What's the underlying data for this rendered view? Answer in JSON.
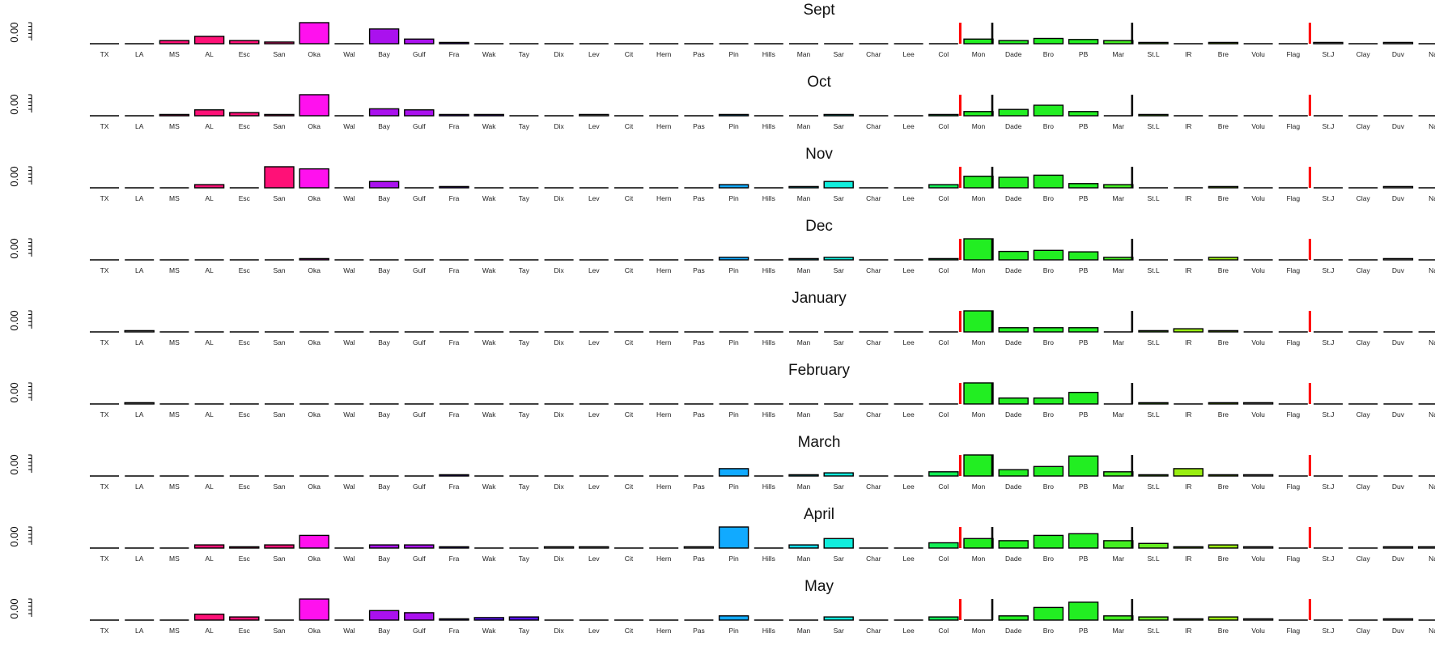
{
  "chart_data": {
    "type": "bar",
    "categories": [
      "TX",
      "LA",
      "MS",
      "AL",
      "Esc",
      "San",
      "Oka",
      "Wal",
      "Bay",
      "Gulf",
      "Fra",
      "Wak",
      "Tay",
      "Dix",
      "Lev",
      "Cit",
      "Hern",
      "Pas",
      "Pin",
      "Hills",
      "Man",
      "Sar",
      "Char",
      "Lee",
      "Col",
      "Mon",
      "Dade",
      "Bro",
      "PB",
      "Mar",
      "St.L",
      "IR",
      "Bre",
      "Volu",
      "Flag",
      "St.J",
      "Clay",
      "Duv",
      "Na"
    ],
    "colors": [
      "#ffffff",
      "#ffffff",
      "#ff1177",
      "#ff1177",
      "#ff1177",
      "#ff1177",
      "#ff11ee",
      "#ffffff",
      "#aa11ee",
      "#aa11ee",
      "#5511ee",
      "#5511ee",
      "#5511ee",
      "#ffffff",
      "#ffffff",
      "#ffffff",
      "#ffffff",
      "#ffffff",
      "#11aaff",
      "#11ccee",
      "#11ddee",
      "#11eedd",
      "#11eebb",
      "#11ee99",
      "#11ee55",
      "#22ee22",
      "#22ee22",
      "#22ee22",
      "#22ee22",
      "#44ee22",
      "#66ee22",
      "#99ee11",
      "#99ee11",
      "#ffffff",
      "#ffffff",
      "#ffffff",
      "#ffffff",
      "#ffffff",
      "#ffffff"
    ],
    "y_tick_label": "0.00",
    "reference_lines": {
      "red": [
        "Col",
        "Flag"
      ],
      "black": [
        "Mon",
        "Mar"
      ]
    },
    "panels": [
      {
        "title": "Sept",
        "values": [
          0,
          0,
          0.15,
          0.35,
          0.15,
          0.08,
          1.0,
          0,
          0.7,
          0.22,
          0.06,
          0,
          0,
          0,
          0,
          0,
          0,
          0,
          0,
          0,
          0,
          0,
          0,
          0,
          0,
          0.22,
          0.15,
          0.25,
          0.2,
          0.15,
          0.06,
          0,
          0.06,
          0,
          0,
          0.06,
          0,
          0.06,
          0
        ]
      },
      {
        "title": "Oct",
        "values": [
          0,
          0,
          0.06,
          0.28,
          0.15,
          0.06,
          1.0,
          0,
          0.33,
          0.28,
          0.06,
          0.06,
          0,
          0,
          0.06,
          0,
          0,
          0,
          0.06,
          0,
          0,
          0.06,
          0,
          0,
          0.06,
          0.2,
          0.3,
          0.5,
          0.2,
          0,
          0.06,
          0,
          0,
          0,
          0,
          0,
          0,
          0,
          0
        ]
      },
      {
        "title": "Nov",
        "values": [
          0,
          0,
          0,
          0.15,
          0,
          1.0,
          0.9,
          0,
          0.3,
          0,
          0.06,
          0,
          0,
          0,
          0,
          0,
          0,
          0,
          0.15,
          0,
          0.06,
          0.3,
          0,
          0,
          0.15,
          0.55,
          0.5,
          0.6,
          0.2,
          0.15,
          0,
          0,
          0.06,
          0,
          0,
          0,
          0,
          0.06,
          0
        ]
      },
      {
        "title": "Dec",
        "values": [
          0,
          0,
          0,
          0,
          0,
          0,
          0.06,
          0,
          0,
          0,
          0,
          0,
          0,
          0,
          0,
          0,
          0,
          0,
          0.12,
          0,
          0.06,
          0.12,
          0,
          0,
          0.06,
          1.0,
          0.4,
          0.45,
          0.38,
          0.12,
          0,
          0,
          0.12,
          0,
          0,
          0,
          0,
          0.06,
          0
        ]
      },
      {
        "title": "January",
        "values": [
          0,
          0.06,
          0,
          0,
          0,
          0,
          0,
          0,
          0,
          0,
          0,
          0,
          0,
          0,
          0,
          0,
          0,
          0,
          0,
          0,
          0,
          0,
          0,
          0,
          0,
          1.0,
          0.2,
          0.2,
          0.2,
          0,
          0.06,
          0.15,
          0.06,
          0,
          0,
          0,
          0,
          0,
          0
        ]
      },
      {
        "title": "February",
        "values": [
          0,
          0.06,
          0,
          0,
          0,
          0,
          0,
          0,
          0,
          0,
          0,
          0,
          0,
          0,
          0,
          0,
          0,
          0,
          0,
          0,
          0,
          0,
          0,
          0,
          0,
          1.0,
          0.28,
          0.28,
          0.55,
          0,
          0.06,
          0,
          0.06,
          0.06,
          0,
          0,
          0,
          0,
          0
        ]
      },
      {
        "title": "March",
        "values": [
          0,
          0,
          0,
          0,
          0,
          0,
          0,
          0,
          0,
          0,
          0.06,
          0,
          0,
          0,
          0,
          0,
          0,
          0,
          0.35,
          0,
          0.06,
          0.15,
          0,
          0,
          0.2,
          1.0,
          0.3,
          0.45,
          0.95,
          0.2,
          0.06,
          0.35,
          0.06,
          0.06,
          0,
          0,
          0,
          0,
          0
        ]
      },
      {
        "title": "April",
        "values": [
          0,
          0,
          0,
          0.15,
          0.06,
          0.15,
          0.6,
          0,
          0.15,
          0.15,
          0.06,
          0,
          0,
          0.06,
          0.06,
          0,
          0,
          0.06,
          1.0,
          0,
          0.15,
          0.45,
          0,
          0,
          0.25,
          0.45,
          0.35,
          0.6,
          0.68,
          0.35,
          0.22,
          0.06,
          0.15,
          0.06,
          0,
          0,
          0,
          0.06,
          0.06
        ]
      },
      {
        "title": "May",
        "values": [
          0,
          0,
          0,
          0.28,
          0.15,
          0,
          1.0,
          0,
          0.45,
          0.35,
          0.06,
          0.12,
          0.15,
          0,
          0,
          0,
          0,
          0,
          0.2,
          0,
          0,
          0.15,
          0,
          0,
          0.15,
          0,
          0.2,
          0.6,
          0.85,
          0.2,
          0.15,
          0.06,
          0.15,
          0.06,
          0,
          0,
          0,
          0.06,
          0
        ]
      }
    ]
  }
}
